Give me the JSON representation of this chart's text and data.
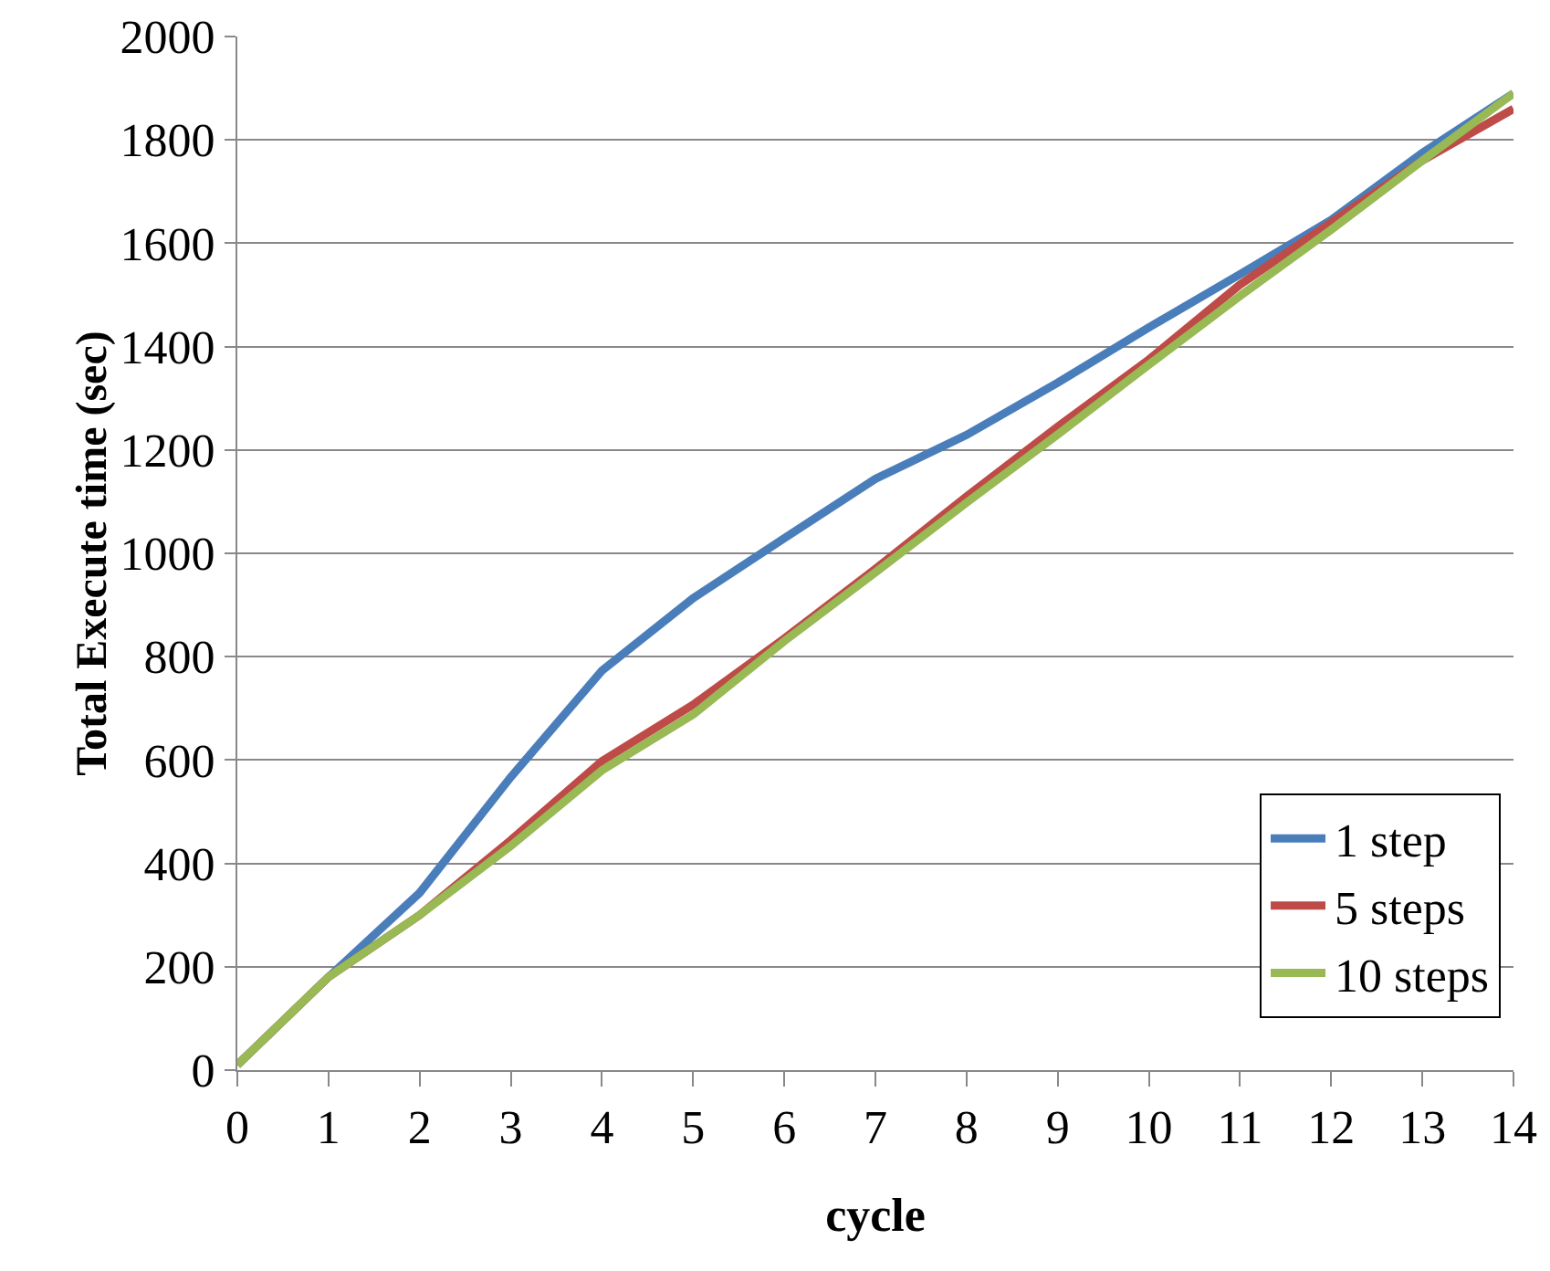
{
  "chart_data": {
    "type": "line",
    "xlabel": "cycle",
    "ylabel": "Total Execute time (sec)",
    "x": [
      0,
      1,
      2,
      3,
      4,
      5,
      6,
      7,
      8,
      9,
      10,
      11,
      12,
      13,
      14
    ],
    "series": [
      {
        "name": "1 step",
        "color": "#4a7ebb",
        "values": [
          10,
          180,
          343,
          567,
          773,
          913,
          1029,
          1144,
          1229,
          1330,
          1437,
          1540,
          1645,
          1775,
          1890
        ]
      },
      {
        "name": "5 steps",
        "color": "#be4b48",
        "values": [
          10,
          180,
          300,
          445,
          598,
          707,
          835,
          970,
          1110,
          1245,
          1375,
          1520,
          1640,
          1760,
          1860
        ]
      },
      {
        "name": "10 steps",
        "color": "#98b954",
        "values": [
          10,
          180,
          300,
          434,
          580,
          688,
          830,
          963,
          1098,
          1230,
          1365,
          1498,
          1626,
          1760,
          1890
        ]
      }
    ],
    "xlim": [
      0,
      14
    ],
    "xticks": [
      0,
      1,
      2,
      3,
      4,
      5,
      6,
      7,
      8,
      9,
      10,
      11,
      12,
      13,
      14
    ],
    "ylim": [
      0,
      2000
    ],
    "yticks": [
      0,
      200,
      400,
      600,
      800,
      1000,
      1200,
      1400,
      1600,
      1800,
      2000
    ],
    "grid": "y",
    "legend": "bottom right",
    "marker": "none",
    "line_style": "solid"
  }
}
